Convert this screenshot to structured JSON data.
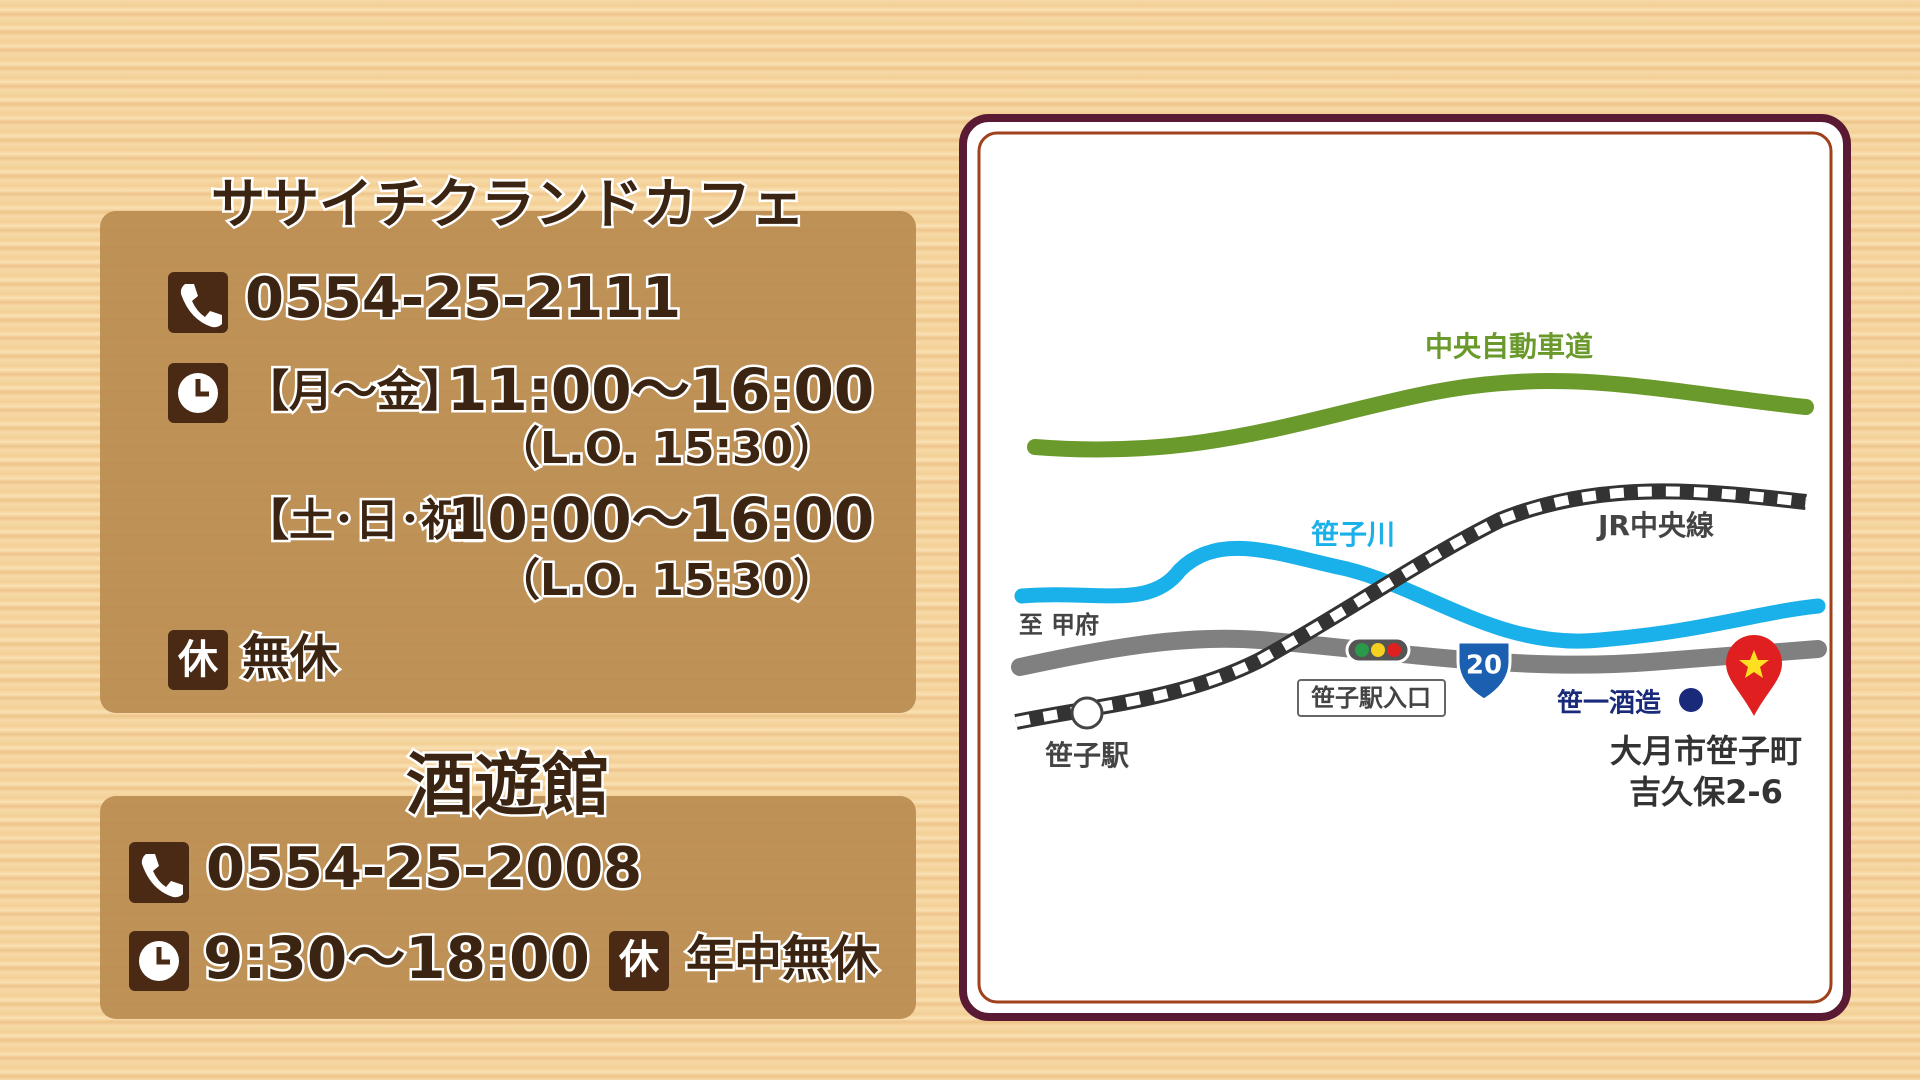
{
  "shops": [
    {
      "name": "ササイチクランドカフェ",
      "phone": "0554-25-2111",
      "hours": [
        {
          "days": "【月～金】",
          "time": "11:00～16:00",
          "last_order": "（L.O. 15:30）"
        },
        {
          "days": "【土･日･祝】",
          "time": "10:00～16:00",
          "last_order": "（L.O. 15:30）"
        }
      ],
      "closed": "無休"
    },
    {
      "name": "酒遊館",
      "phone": "0554-25-2008",
      "hours": [
        {
          "time": "9:30～18:00"
        }
      ],
      "closed": "年中無休"
    }
  ],
  "closed_icon": "休",
  "map": {
    "expressway": "中央自動車道",
    "river": "笹子川",
    "railway": "JR中央線",
    "direction": "至 甲府",
    "station": "笹子駅",
    "intersection": "笹子駅入口",
    "route": "20",
    "brewery": "笹一酒造",
    "address": [
      "大月市笹子町",
      "吉久保2-6"
    ]
  }
}
